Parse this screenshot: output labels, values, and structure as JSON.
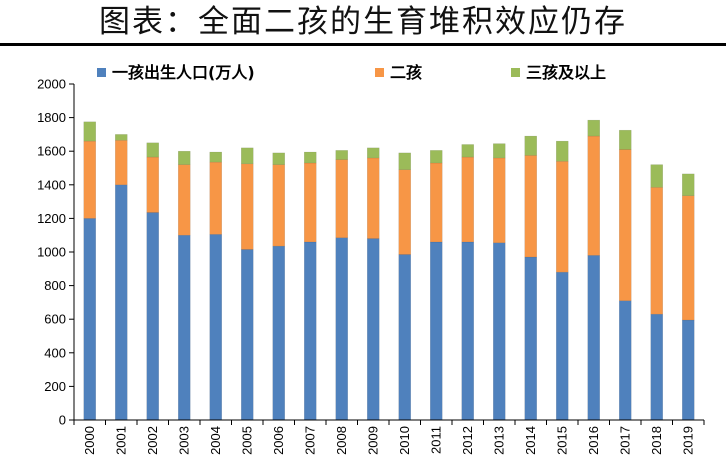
{
  "title": "图表：全面二孩的生育堆积效应仍存",
  "chart_data": {
    "type": "bar",
    "stacked": true,
    "categories": [
      "2000",
      "2001",
      "2002",
      "2003",
      "2004",
      "2005",
      "2006",
      "2007",
      "2008",
      "2009",
      "2010",
      "2011",
      "2012",
      "2013",
      "2014",
      "2015",
      "2016",
      "2017",
      "2018",
      "2019"
    ],
    "series": [
      {
        "name": "一孩出生人口(万人)",
        "color": "#4f81bd",
        "values": [
          1200,
          1400,
          1235,
          1100,
          1105,
          1015,
          1035,
          1060,
          1085,
          1080,
          985,
          1060,
          1060,
          1055,
          970,
          880,
          980,
          710,
          630,
          595
        ]
      },
      {
        "name": "二孩",
        "color": "#f79646",
        "values": [
          460,
          265,
          330,
          420,
          430,
          510,
          485,
          470,
          465,
          480,
          505,
          470,
          505,
          505,
          605,
          660,
          710,
          900,
          755,
          740
        ]
      },
      {
        "name": "三孩及以上",
        "color": "#9bbb59",
        "values": [
          115,
          35,
          85,
          80,
          60,
          95,
          70,
          65,
          55,
          60,
          100,
          75,
          75,
          85,
          115,
          120,
          95,
          115,
          135,
          130
        ]
      }
    ],
    "ylim": [
      0,
      2000
    ],
    "yticks": [
      0,
      200,
      400,
      600,
      800,
      1000,
      1200,
      1400,
      1600,
      1800,
      2000
    ],
    "grid": false,
    "legend": "top"
  }
}
